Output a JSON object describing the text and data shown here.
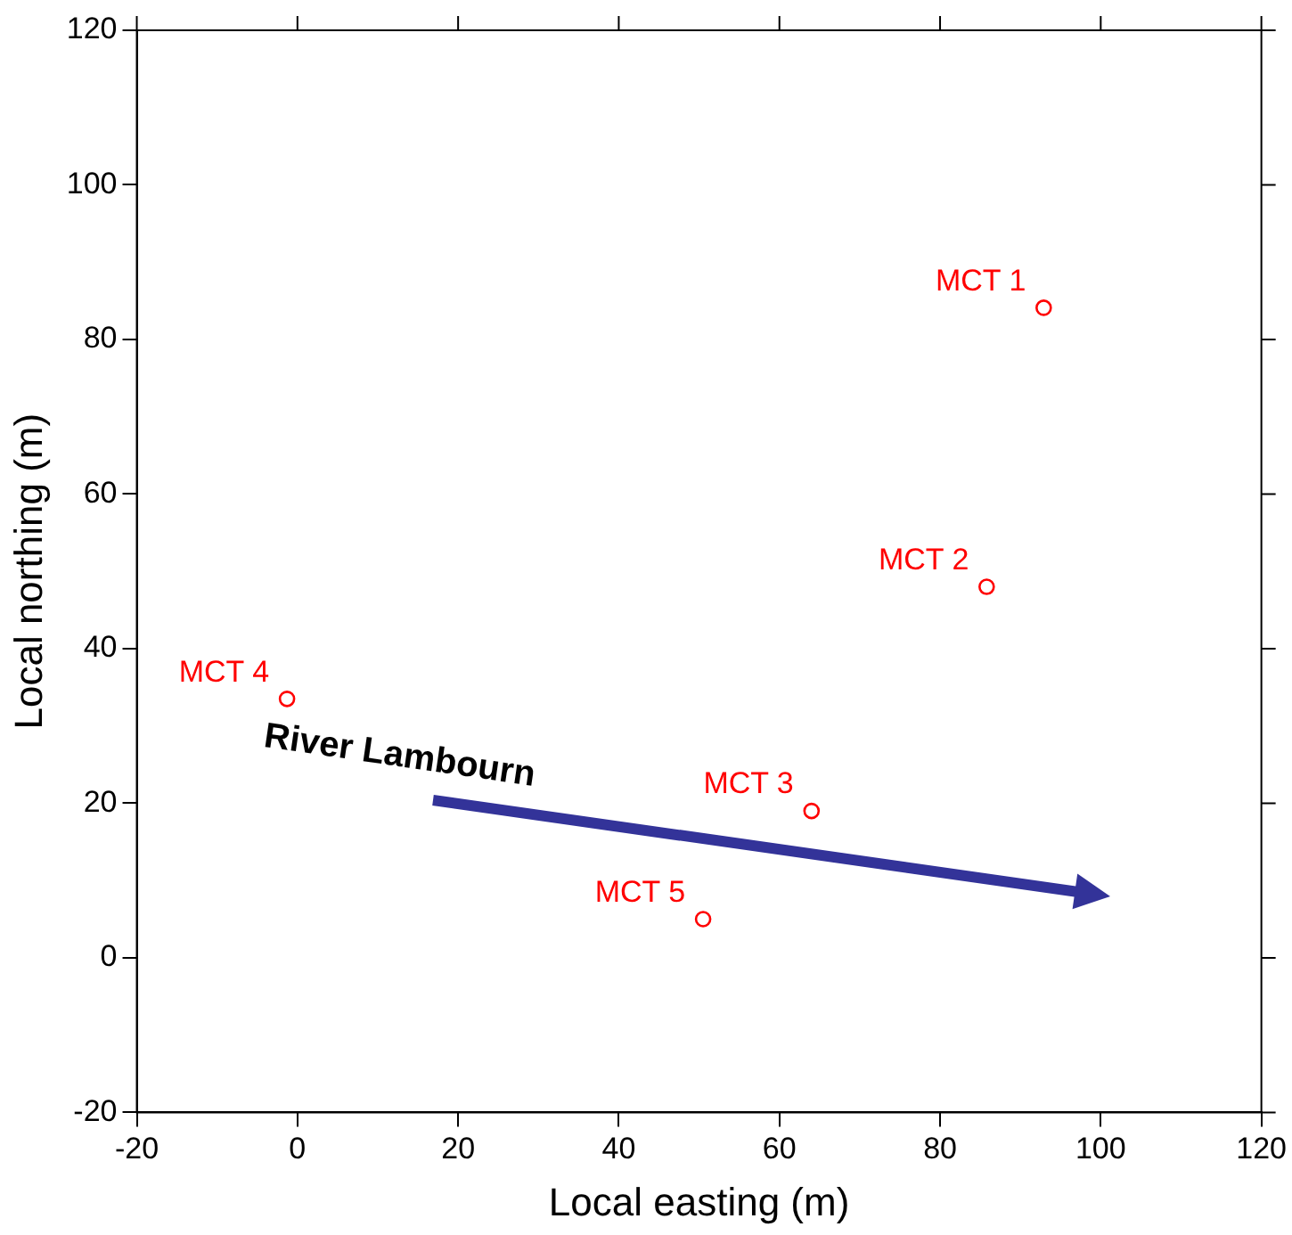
{
  "chart_data": {
    "type": "scatter",
    "xlabel": "Local easting (m)",
    "ylabel": "Local northing (m)",
    "xlim": [
      -20,
      120
    ],
    "xticks": [
      -20,
      0,
      20,
      40,
      60,
      80,
      100,
      120
    ],
    "ylim": [
      -20,
      120
    ],
    "yticks": [
      -20,
      0,
      20,
      40,
      60,
      80,
      100,
      120
    ],
    "grid": false,
    "legend": false,
    "marker": "circle",
    "annotations": [
      "River Lambourn"
    ],
    "series": [
      {
        "name": "MCT 1",
        "color": "#ff0000",
        "x": [
          92.9
        ],
        "values": [
          84.1
        ]
      },
      {
        "name": "MCT 2",
        "color": "#ff0000",
        "x": [
          85.8
        ],
        "values": [
          48.0
        ]
      },
      {
        "name": "MCT 3",
        "color": "#ff0000",
        "x": [
          64.0
        ],
        "values": [
          19.0
        ]
      },
      {
        "name": "MCT 4",
        "color": "#ff0000",
        "x": [
          -1.3
        ],
        "values": [
          33.5
        ]
      },
      {
        "name": "MCT 5",
        "color": "#ff0000",
        "x": [
          50.5
        ],
        "values": [
          5.0
        ]
      }
    ]
  }
}
